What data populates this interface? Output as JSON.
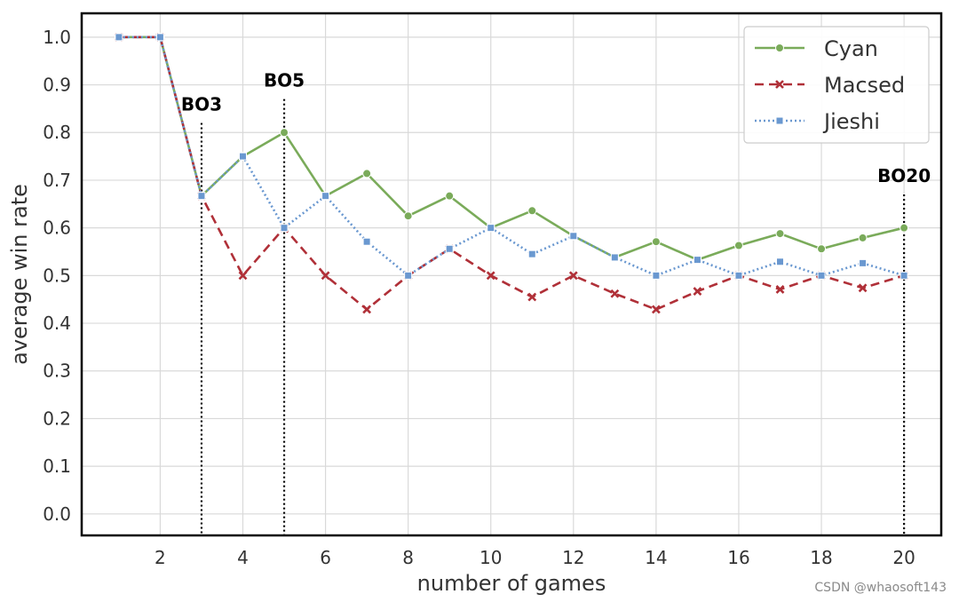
{
  "chart_data": {
    "type": "line",
    "xlabel": "number of games",
    "ylabel": "average win rate",
    "xlim": [
      0.1,
      20.9
    ],
    "ylim": [
      -0.045,
      1.05
    ],
    "x_ticks": [
      2,
      4,
      6,
      8,
      10,
      12,
      14,
      16,
      18,
      20
    ],
    "y_ticks": [
      0.0,
      0.1,
      0.2,
      0.3,
      0.4,
      0.5,
      0.6,
      0.7,
      0.8,
      0.9,
      1.0
    ],
    "x_tick_labels": [
      "2",
      "4",
      "6",
      "8",
      "10",
      "12",
      "14",
      "16",
      "18",
      "20"
    ],
    "y_tick_labels": [
      "0.0",
      "0.1",
      "0.2",
      "0.3",
      "0.4",
      "0.5",
      "0.6",
      "0.7",
      "0.8",
      "0.9",
      "1.0"
    ],
    "grid": true,
    "legend_position": "top-right",
    "x": [
      1,
      2,
      3,
      4,
      5,
      6,
      7,
      8,
      9,
      10,
      11,
      12,
      13,
      14,
      15,
      16,
      17,
      18,
      19,
      20
    ],
    "series": [
      {
        "name": "Cyan",
        "color": "#7aab5a",
        "line_style": "solid",
        "marker": "circle",
        "values": [
          1.0,
          1.0,
          0.667,
          0.75,
          0.8,
          0.667,
          0.714,
          0.625,
          0.667,
          0.6,
          0.636,
          0.583,
          0.538,
          0.571,
          0.533,
          0.563,
          0.588,
          0.556,
          0.579,
          0.6
        ]
      },
      {
        "name": "Macsed",
        "color": "#b03038",
        "line_style": "dashed",
        "marker": "x",
        "values": [
          1.0,
          1.0,
          0.667,
          0.5,
          0.6,
          0.5,
          0.429,
          0.5,
          0.556,
          0.5,
          0.455,
          0.5,
          0.462,
          0.429,
          0.467,
          0.5,
          0.471,
          0.5,
          0.474,
          0.5
        ]
      },
      {
        "name": "Jieshi",
        "color": "#6a98d0",
        "line_style": "dotted",
        "marker": "square",
        "values": [
          1.0,
          1.0,
          0.667,
          0.75,
          0.6,
          0.667,
          0.571,
          0.5,
          0.556,
          0.6,
          0.545,
          0.583,
          0.538,
          0.5,
          0.533,
          0.5,
          0.529,
          0.5,
          0.526,
          0.5
        ]
      }
    ],
    "annotations": [
      {
        "label": "BO3",
        "x": 3,
        "y_top": 0.82
      },
      {
        "label": "BO5",
        "x": 5,
        "y_top": 0.87
      },
      {
        "label": "BO20",
        "x": 20,
        "y_top": 0.67
      }
    ]
  },
  "watermark": "CSDN @whaosoft143"
}
